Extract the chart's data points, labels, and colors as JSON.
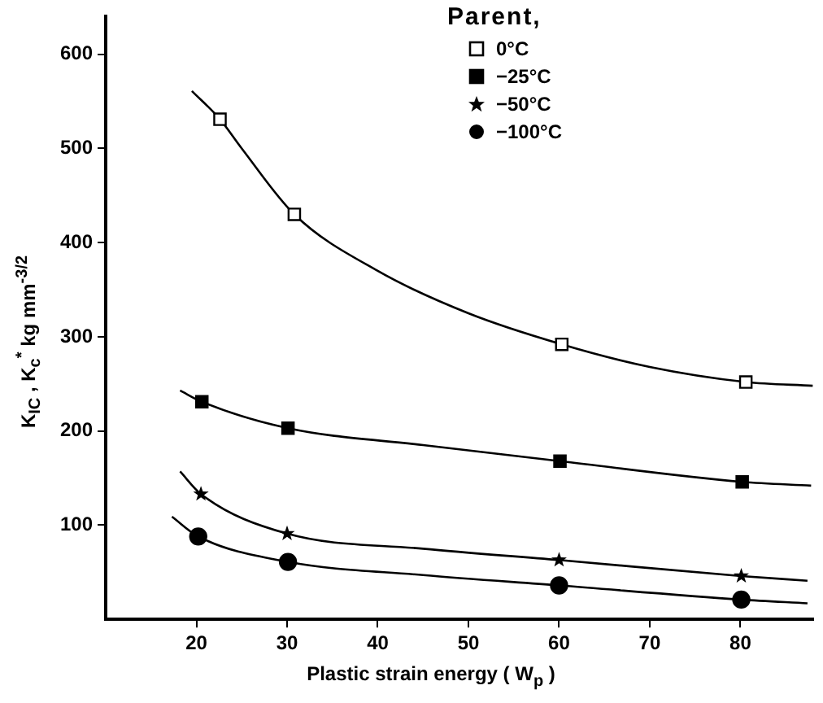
{
  "chart_data": {
    "type": "scatter",
    "xlabel": "Plastic strain energy ( W$_{p}$ )",
    "ylabel": "K$_{IC}$ , K$_{c}$$^{*}$  kg mm$^{-3/2}$",
    "legend_title": "Parent,",
    "legend": "top right",
    "grid": false,
    "xlim": [
      10,
      88
    ],
    "xticks": [
      20,
      30,
      40,
      50,
      60,
      70,
      80
    ],
    "ylim": [
      0,
      640
    ],
    "yticks": [
      100,
      200,
      300,
      400,
      500,
      600
    ],
    "series": [
      {
        "name": "0°C",
        "marker": "square",
        "color": "#ffffff",
        "x": [
          22.6,
          30.8,
          60.3,
          80.6
        ],
        "values": [
          531,
          430,
          292,
          252
        ]
      },
      {
        "name": "−25°C",
        "marker": "square",
        "color": "#000000",
        "x": [
          20.6,
          30.1,
          60.1,
          80.2
        ],
        "values": [
          231,
          203,
          168,
          146
        ]
      },
      {
        "name": "−50°C",
        "marker": "star",
        "color": "#000000",
        "x": [
          20.5,
          30,
          60,
          80.1
        ],
        "values": [
          133,
          91,
          63,
          46
        ]
      },
      {
        "name": "−100°C",
        "marker": "circle",
        "color": "#000000",
        "x": [
          20.2,
          30.1,
          60,
          80.1
        ],
        "values": [
          88,
          61,
          36,
          21
        ]
      },
      {
        "type": "line",
        "marker": "none",
        "color": "#000000",
        "x": [
          19.5,
          22.6,
          25,
          30.8,
          40,
          50,
          60.3,
          70,
          80.6,
          88
        ],
        "values": [
          561,
          531,
          500,
          430,
          370,
          325,
          292,
          268,
          252,
          248
        ]
      },
      {
        "type": "line",
        "marker": "none",
        "color": "#000000",
        "x": [
          18.2,
          20.6,
          30.1,
          45,
          60.1,
          80.2,
          87.8
        ],
        "values": [
          243,
          231,
          203,
          185,
          168,
          146,
          142
        ]
      },
      {
        "type": "line",
        "marker": "none",
        "color": "#000000",
        "x": [
          18.2,
          20.5,
          30,
          45,
          60,
          80.1,
          87.4
        ],
        "values": [
          157,
          133,
          91,
          75,
          63,
          46,
          41
        ]
      },
      {
        "type": "line",
        "marker": "none",
        "color": "#000000",
        "x": [
          17.3,
          20.2,
          30.1,
          45,
          60,
          80.1,
          87.4
        ],
        "values": [
          109,
          88,
          61,
          47,
          36,
          21,
          17
        ]
      }
    ]
  }
}
